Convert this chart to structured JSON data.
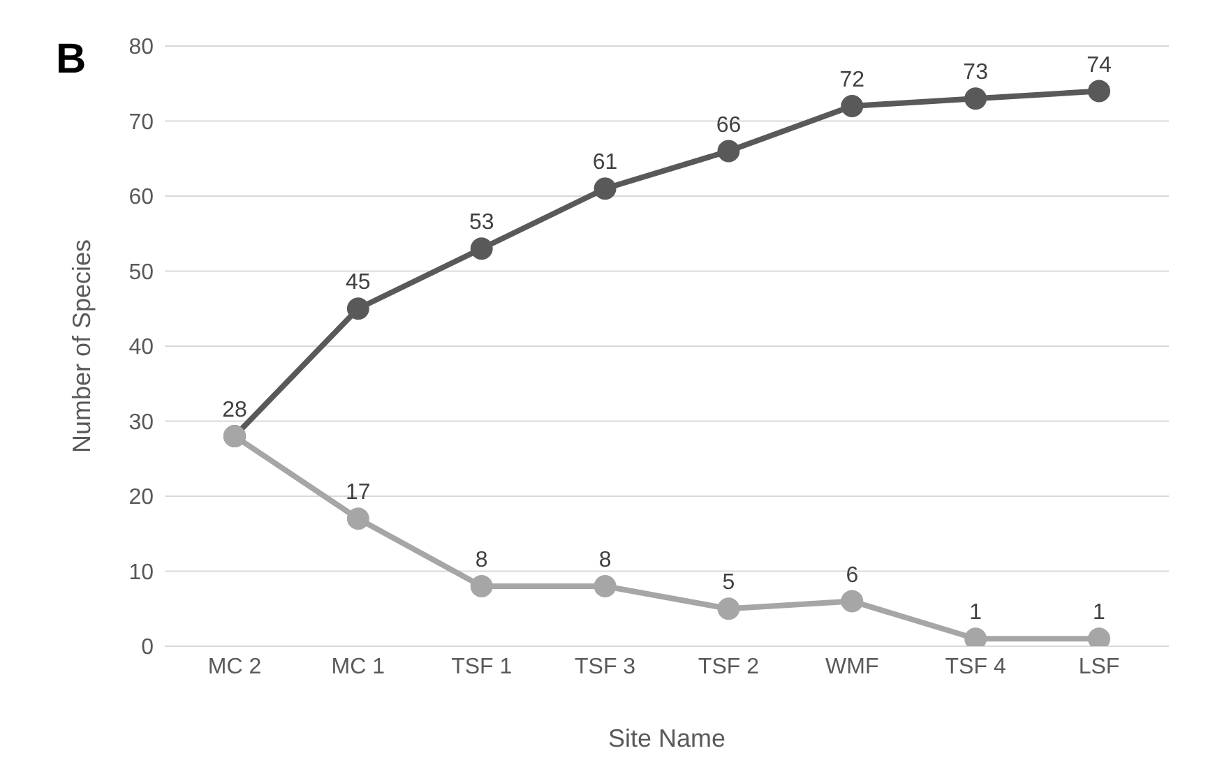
{
  "chart_data": {
    "type": "line",
    "title": "B",
    "xlabel": "Site Name",
    "ylabel": "Number of Species",
    "categories": [
      "MC 2",
      "MC 1",
      "TSF 1",
      "TSF 3",
      "TSF 2",
      "WMF",
      "TSF 4",
      "LSF"
    ],
    "series": [
      {
        "color": "#595959",
        "values": [
          28,
          45,
          53,
          61,
          66,
          72,
          73,
          74
        ]
      },
      {
        "color": "#a6a6a6",
        "values": [
          28,
          17,
          8,
          8,
          5,
          6,
          1,
          1
        ],
        "value_labels": [
          null,
          "17",
          "8",
          "8",
          "5",
          "6",
          "1",
          "1"
        ]
      }
    ],
    "ylim": [
      0,
      80
    ],
    "yticks": [
      0,
      10,
      20,
      30,
      40,
      50,
      60,
      70,
      80
    ],
    "grid": "y",
    "legend": false,
    "marker": "circle",
    "line_style": "solid",
    "data_labels": true
  }
}
